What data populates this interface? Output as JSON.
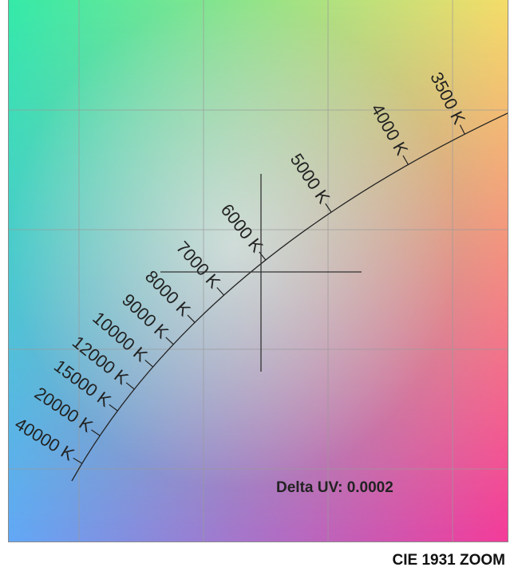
{
  "chart_data": {
    "type": "scatter",
    "title": "CIE 1931 ZOOM",
    "xlabel": "",
    "ylabel": "",
    "grid": true,
    "planckian_locus": {
      "tick_labels": [
        "3500 K",
        "4000 K",
        "5000 K",
        "6000 K",
        "7000 K",
        "8000 K",
        "9000 K",
        "10000 K",
        "12000 K",
        "15000 K",
        "20000 K",
        "40000 K"
      ],
      "temperatures_k": [
        3500,
        4000,
        5000,
        6000,
        7000,
        8000,
        9000,
        10000,
        12000,
        15000,
        20000,
        40000
      ]
    },
    "target_point": {
      "marker": "crosshair"
    },
    "annotation": "Delta UV: 0.0002"
  },
  "caption": "CIE 1931 ZOOM",
  "colors": {
    "top_left": "#3ef0a6",
    "top_right": "#f7e06a",
    "bottom_left": "#6aa6f8",
    "bottom_right": "#f4399c",
    "locus": "#222222",
    "grid": "#9a9a9a"
  }
}
